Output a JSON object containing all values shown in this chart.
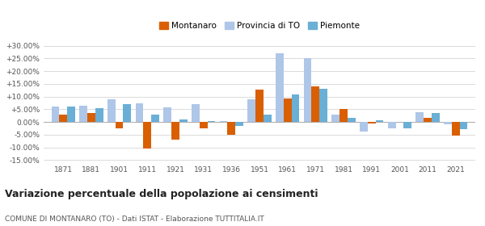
{
  "years": [
    1871,
    1881,
    1901,
    1911,
    1921,
    1931,
    1936,
    1951,
    1961,
    1971,
    1981,
    1991,
    2001,
    2011,
    2021
  ],
  "montanaro": [
    2.8,
    3.5,
    -2.5,
    -10.5,
    -7.0,
    -2.5,
    -5.0,
    12.8,
    9.2,
    14.0,
    5.2,
    -0.5,
    0.0,
    1.8,
    -5.2
  ],
  "montanaro_skip": [
    12
  ],
  "provincia_to": [
    6.2,
    6.5,
    8.8,
    7.5,
    5.8,
    7.0,
    0.5,
    9.0,
    27.2,
    25.0,
    2.8,
    -3.8,
    -2.5,
    3.8,
    -0.8
  ],
  "piemonte": [
    6.0,
    5.5,
    7.0,
    3.0,
    1.0,
    0.5,
    -1.5,
    3.0,
    11.0,
    13.0,
    1.5,
    0.8,
    -2.5,
    3.5,
    -2.8
  ],
  "color_montanaro": "#d95f02",
  "color_provincia": "#aec6e8",
  "color_piemonte": "#6aafd6",
  "title": "Variazione percentuale della popolazione ai censimenti",
  "subtitle": "COMUNE DI MONTANARO (TO) - Dati ISTAT - Elaborazione TUTTITALIA.IT",
  "ylim": [
    -16,
    32
  ],
  "yticks": [
    -15,
    -10,
    -5,
    0,
    5,
    10,
    15,
    20,
    25,
    30
  ],
  "ytick_labels": [
    "-15.00%",
    "-10.00%",
    "-5.00%",
    "0.00%",
    "+5.00%",
    "+10.00%",
    "+15.00%",
    "+20.00%",
    "+25.00%",
    "+30.00%"
  ]
}
